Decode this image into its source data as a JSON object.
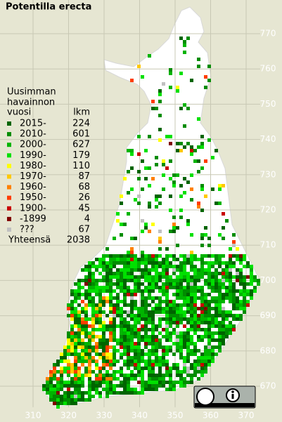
{
  "title": "Potentilla erecta",
  "legend": {
    "heading": [
      "Uusimman",
      "havainnon",
      "vuosi"
    ],
    "count_heading": "lkm",
    "rows": [
      {
        "label": "2015-",
        "count": 224,
        "color": "#006400"
      },
      {
        "label": "2010-",
        "count": 601,
        "color": "#008c00"
      },
      {
        "label": "2000-",
        "count": 627,
        "color": "#00b400"
      },
      {
        "label": "1990-",
        "count": 179,
        "color": "#00e000"
      },
      {
        "label": "1980-",
        "count": 110,
        "color": "#ffff00"
      },
      {
        "label": "1970-",
        "count": 87,
        "color": "#ffc800"
      },
      {
        "label": "1960-",
        "count": 68,
        "color": "#ff8000"
      },
      {
        "label": "1950-",
        "count": 26,
        "color": "#ff3c00"
      },
      {
        "label": "1900-",
        "count": 45,
        "color": "#c80000"
      },
      {
        "label": "-1899",
        "count": 4,
        "color": "#800000"
      },
      {
        "label": "???",
        "count": 67,
        "color": "#c0c0c0"
      }
    ],
    "total_label": "Yhteensä",
    "total": 2038
  },
  "grid": {
    "x_labels": [
      310,
      320,
      330,
      340,
      350,
      360,
      370
    ],
    "y_labels": [
      770,
      760,
      750,
      740,
      730,
      720,
      710,
      700,
      690,
      680,
      670
    ]
  }
}
